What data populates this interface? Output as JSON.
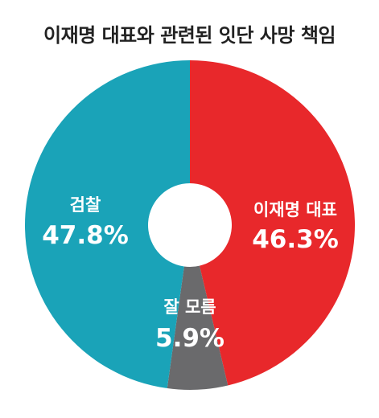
{
  "chart_data": {
    "type": "pie",
    "title": "이재명 대표와 관련된 잇단 사망 책임",
    "slices": [
      {
        "label": "이재명 대표",
        "value": 46.3,
        "display": "46.3%",
        "color": "#e8282b"
      },
      {
        "label": "잘 모름",
        "value": 5.9,
        "display": "5.9%",
        "color": "#6a6a6c"
      },
      {
        "label": "검찰",
        "value": 47.8,
        "display": "47.8%",
        "color": "#1aa3b8"
      }
    ],
    "start_angle_deg": 0,
    "direction": "clockwise",
    "donut": true,
    "legend": "none"
  }
}
